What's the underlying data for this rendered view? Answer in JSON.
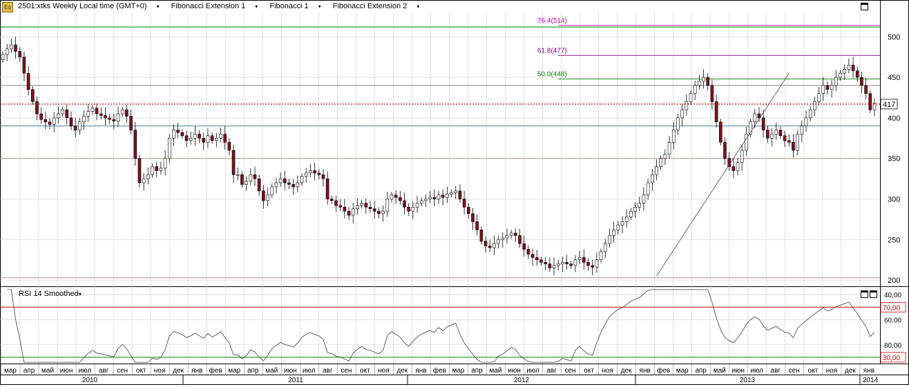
{
  "header": {
    "logo": "Eq",
    "symbol": "2501:xtks Weekly Local time (GMT+0)",
    "studies": [
      "Fibonacci Extension 1",
      "Fibonacci 1",
      "Fibonacci Extension 2"
    ]
  },
  "rsi_panel": {
    "label": "RSI 14 Smoothed"
  },
  "colors": {
    "up_candle": "#ffffff",
    "down_candle": "#7a1020",
    "grid": "#cccccc",
    "last_price_line": "#cc0000",
    "overbought_line": "#cc0000",
    "oversold_line": "#008000"
  },
  "chart_data": [
    {
      "type": "candlestick",
      "title": "",
      "ylim": [
        195,
        530
      ],
      "y_ticks": [
        200,
        250,
        300,
        350,
        400,
        450,
        500
      ],
      "last_price": 417,
      "x_month_labels": [
        "мар",
        "апр",
        "май",
        "июн",
        "июл",
        "авг",
        "сен",
        "окт",
        "ноя",
        "дек",
        "янв",
        "фев",
        "мар",
        "апр",
        "май",
        "июн",
        "июл",
        "авг",
        "сен",
        "окт",
        "ноя",
        "дек",
        "янв",
        "фев",
        "мар",
        "апр",
        "май",
        "июн",
        "июл",
        "авг",
        "сен",
        "окт",
        "ноя",
        "дек",
        "янв",
        "фев",
        "мар",
        "апр",
        "май",
        "июн",
        "июл",
        "авг",
        "сен",
        "окт",
        "ноя",
        "дек",
        "янв"
      ],
      "x_year_labels": [
        "2010",
        "2011",
        "2012",
        "2013",
        "2014"
      ],
      "horizontal_levels": [
        {
          "value": 512,
          "color": "#008000"
        },
        {
          "value": 440,
          "color": "#808080"
        },
        {
          "value": 390,
          "color": "#4a7fa0"
        },
        {
          "value": 350,
          "color": "#c09090"
        },
        {
          "value": 203,
          "color": "#c09090"
        }
      ],
      "fibonacci": [
        {
          "label": "76.4(514)",
          "value": 514,
          "color": "#c000c0"
        },
        {
          "label": "61.8(477)",
          "value": 477,
          "color": "#800080"
        },
        {
          "label": "50.0(448)",
          "value": 448,
          "color": "#008000"
        }
      ],
      "trendline": [
        {
          "week": 153,
          "price": 205
        },
        {
          "week": 184,
          "price": 455
        }
      ],
      "close_series": [
        478,
        485,
        490,
        482,
        475,
        455,
        435,
        420,
        405,
        398,
        395,
        392,
        400,
        405,
        410,
        400,
        390,
        385,
        395,
        402,
        408,
        412,
        405,
        403,
        400,
        398,
        396,
        405,
        410,
        402,
        385,
        350,
        320,
        325,
        330,
        340,
        335,
        338,
        350,
        375,
        385,
        382,
        378,
        372,
        375,
        380,
        375,
        370,
        378,
        372,
        375,
        380,
        370,
        360,
        330,
        330,
        318,
        322,
        330,
        325,
        310,
        298,
        305,
        315,
        320,
        325,
        320,
        318,
        315,
        320,
        328,
        332,
        335,
        332,
        330,
        325,
        300,
        298,
        292,
        290,
        285,
        280,
        288,
        292,
        295,
        290,
        288,
        285,
        282,
        285,
        300,
        305,
        302,
        298,
        290,
        285,
        290,
        295,
        298,
        300,
        302,
        300,
        305,
        302,
        306,
        308,
        310,
        300,
        290,
        282,
        272,
        262,
        248,
        242,
        240,
        245,
        250,
        252,
        255,
        258,
        255,
        245,
        238,
        232,
        228,
        225,
        222,
        220,
        215,
        218,
        220,
        222,
        220,
        218,
        225,
        228,
        222,
        218,
        216,
        225,
        235,
        245,
        255,
        262,
        268,
        272,
        278,
        285,
        290,
        295,
        305,
        320,
        330,
        340,
        350,
        355,
        370,
        385,
        400,
        410,
        420,
        430,
        440,
        445,
        450,
        440,
        420,
        395,
        370,
        350,
        340,
        335,
        345,
        360,
        380,
        395,
        405,
        400,
        385,
        375,
        380,
        385,
        378,
        372,
        370,
        360,
        380,
        390,
        400,
        410,
        420,
        430,
        440,
        435,
        440,
        450,
        455,
        460,
        465,
        458,
        450,
        440,
        430,
        410,
        418
      ]
    },
    {
      "type": "line",
      "title": "",
      "ylim": [
        25,
        85
      ],
      "y_ticks": [
        40,
        60,
        80
      ],
      "overbought": {
        "value": 70,
        "label": "70,00"
      },
      "oversold": {
        "value": 30,
        "label": "30,00"
      },
      "tick_labels": [
        "80,00",
        "60,00",
        "40,00"
      ]
    }
  ]
}
